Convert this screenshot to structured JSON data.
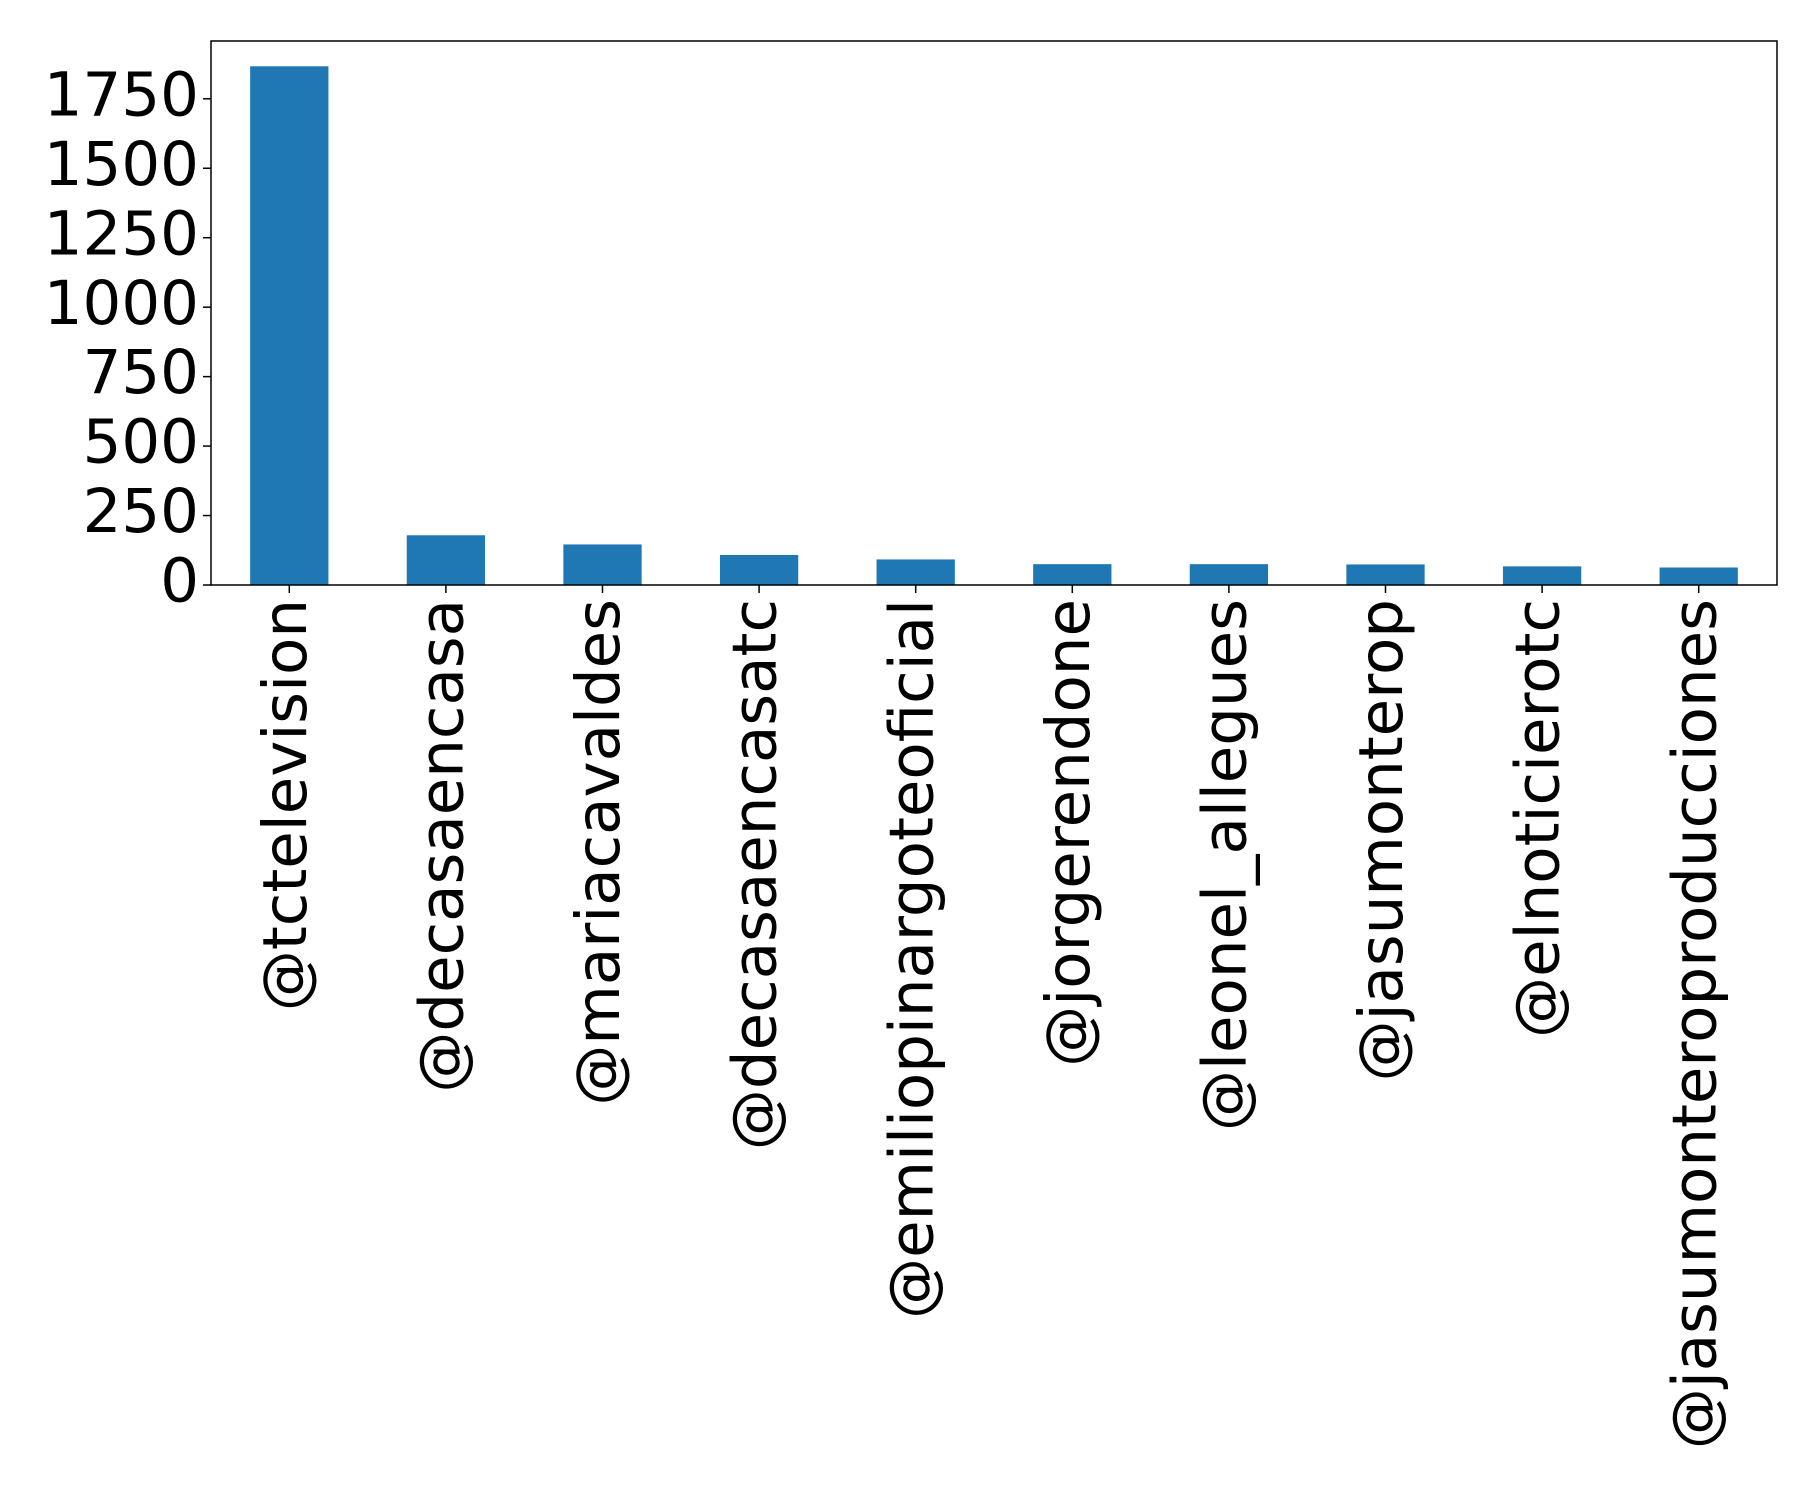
{
  "chart_data": {
    "type": "bar",
    "categories": [
      "@tctelevision",
      "@decasaencasa",
      "@mariacavaldes",
      "@decasaencasatc",
      "@emiliopinargoteoficial",
      "@jorgerendone",
      "@leonel_allegues",
      "@jasumonterop",
      "@elnoticierotc",
      "@jasumonteroproducciones"
    ],
    "values": [
      1867,
      179,
      146,
      108,
      92,
      75,
      75,
      74,
      67,
      63
    ],
    "color": "#1f77b4",
    "ylim": [
      0,
      1958
    ],
    "yticks": [
      0,
      250,
      500,
      750,
      1000,
      1250,
      1500,
      1750
    ],
    "grid": false
  }
}
